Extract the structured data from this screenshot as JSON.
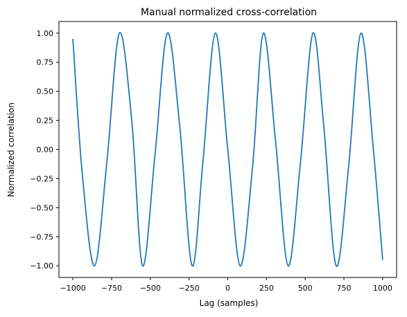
{
  "chart_data": {
    "type": "line",
    "title": "Manual normalized cross-correlation",
    "xlabel": "Lag (samples)",
    "ylabel": "Normalized correlation",
    "xlim": [
      -1090,
      1090
    ],
    "ylim": [
      -1.1,
      1.1
    ],
    "x_ticks": [
      -1000,
      -750,
      -500,
      -250,
      0,
      250,
      500,
      750,
      1000
    ],
    "x_tick_labels": [
      "−1000",
      "−750",
      "−500",
      "−250",
      "0",
      "250",
      "500",
      "750",
      "1000"
    ],
    "y_ticks": [
      1.0,
      0.75,
      0.5,
      0.25,
      0.0,
      -0.25,
      -0.5,
      -0.75,
      -1.0
    ],
    "y_tick_labels": [
      "1.00",
      "0.75",
      "0.50",
      "0.25",
      "0.00",
      "−0.25",
      "−0.50",
      "−0.75",
      "−1.00"
    ],
    "grid": false,
    "legend": "none",
    "line_color": "#1f77b4",
    "series": [
      {
        "x": [
          -1000,
          -940,
          -860,
          -780,
          -700,
          -620,
          -550,
          -470,
          -390,
          -310,
          -230,
          -160,
          -80,
          0,
          80,
          160,
          230,
          310,
          390,
          470,
          550,
          620,
          700,
          780,
          860,
          940,
          1000
        ],
        "y": [
          0.95,
          -0.2,
          -1.0,
          -0.1,
          1.0,
          0.25,
          -1.0,
          -0.05,
          1.0,
          0.2,
          -1.0,
          -0.1,
          1.0,
          0.0,
          -1.0,
          -0.15,
          1.0,
          0.05,
          -1.0,
          -0.1,
          1.0,
          0.2,
          -1.0,
          -0.15,
          1.0,
          0.0,
          -0.95
        ]
      }
    ]
  }
}
